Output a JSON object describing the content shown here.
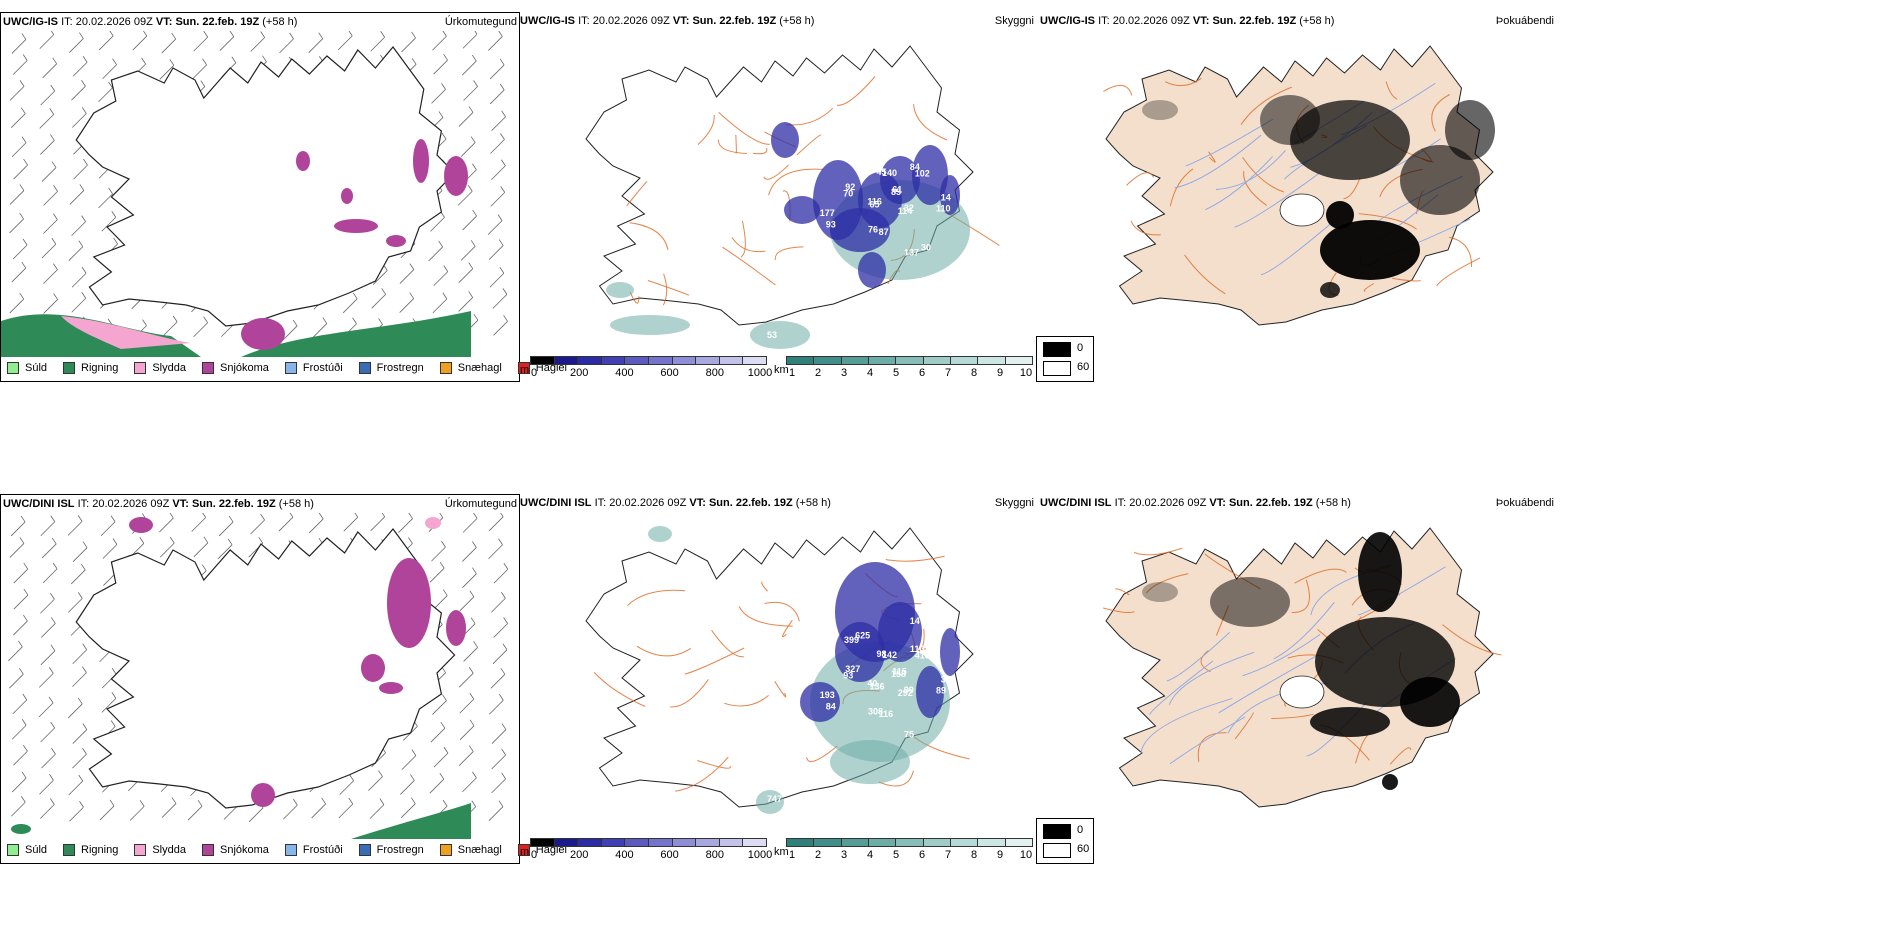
{
  "rows": [
    {
      "model": "UWC/IG-IS",
      "it_label": "IT:",
      "it_value": "20.02.2026 09Z",
      "vt_label": "VT:",
      "vt_value": "Sun. 22.feb. 19Z",
      "lead": "(+58 h)",
      "panel_titles": [
        "Úrkomutegund",
        "Skyggni",
        "Þokuábendi"
      ],
      "visibility_labels": [
        "85",
        "116",
        "140",
        "114",
        "92",
        "102",
        "76",
        "126",
        "110",
        "177",
        "118",
        "137",
        "41",
        "61",
        "65",
        "45",
        "32",
        "70",
        "84",
        "87",
        "108",
        "14",
        "93",
        "47",
        "30"
      ],
      "visibility_labels_sw": [
        "53"
      ]
    },
    {
      "model": "UWC/DINI ISL",
      "it_label": "IT:",
      "it_value": "20.02.2026 09Z",
      "vt_label": "VT:",
      "vt_value": "Sun. 22.feb. 19Z",
      "lead": "(+58 h)",
      "panel_titles": [
        "Úrkomutegund",
        "Skyggni",
        "Þokuábendi"
      ],
      "visibility_labels": [
        "158",
        "40",
        "142",
        "292",
        "327",
        "416",
        "308",
        "625",
        "89",
        "193",
        "14",
        "75",
        "81",
        "115",
        "136",
        "98",
        "99",
        "93",
        "110",
        "116",
        "399",
        "320",
        "84"
      ],
      "visibility_labels_sw": [
        "747"
      ]
    }
  ],
  "precip_legend": [
    {
      "label": "Súld",
      "color": "#90ee90"
    },
    {
      "label": "Rigning",
      "color": "#2e8b57"
    },
    {
      "label": "Slydda",
      "color": "#f4a6d0"
    },
    {
      "label": "Snjókoma",
      "color": "#b0449b"
    },
    {
      "label": "Frostúði",
      "color": "#87b7ea"
    },
    {
      "label": "Frostregn",
      "color": "#3b6db5"
    },
    {
      "label": "Snæhagl",
      "color": "#f0a020"
    },
    {
      "label": "Haglél",
      "color": "#e02020"
    }
  ],
  "cloudbase_scale": {
    "unit": "m",
    "ticks": [
      "0",
      "200",
      "400",
      "600",
      "800",
      "1000"
    ],
    "colors": [
      "#000000",
      "#1a1a8c",
      "#2b2ba6",
      "#4040b4",
      "#5a5ac0",
      "#7474cc",
      "#8e8ed6",
      "#a8a8e0",
      "#c2c2ea",
      "#dcdcf4"
    ]
  },
  "visibility_scale": {
    "unit": "km",
    "ticks": [
      "1",
      "2",
      "3",
      "4",
      "5",
      "6",
      "7",
      "8",
      "9",
      "10"
    ],
    "colors": [
      "#2f7f7a",
      "#3f8e89",
      "#569d98",
      "#6dada8",
      "#86bdb8",
      "#9ecdc8",
      "#b5dad6",
      "#cce6e3",
      "#e2f1ef"
    ]
  },
  "fog_legend": [
    {
      "label": "0",
      "color": "#000000"
    },
    {
      "label": "60",
      "color": "#ffffff"
    }
  ],
  "colors": {
    "land_fog": "#f3dfcc",
    "roads": "#e0702a",
    "rivers": "#8aa6e8",
    "coast": "#222222",
    "rain": "#2e8b57",
    "sleet": "#f4a6d0",
    "snow": "#b0449b",
    "vis_blue": "#2e2ea6",
    "vis_teal": "#6dada8"
  }
}
